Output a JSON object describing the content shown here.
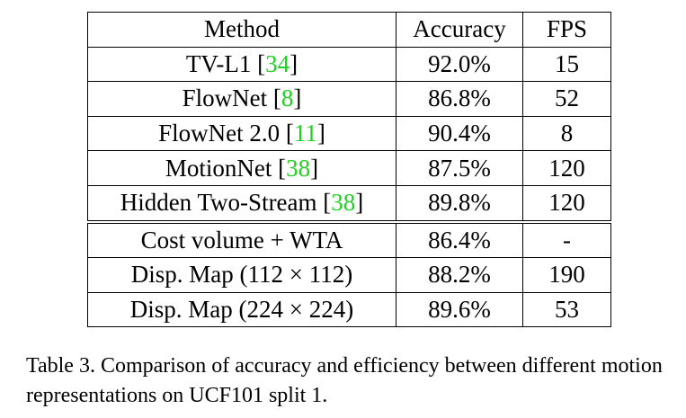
{
  "table": {
    "headers": [
      "Method",
      "Accuracy",
      "FPS"
    ],
    "group1": [
      {
        "method": "TV-L1",
        "cite": "34",
        "accuracy": "92.0%",
        "fps": "15"
      },
      {
        "method": "FlowNet",
        "cite": "8",
        "accuracy": "86.8%",
        "fps": "52"
      },
      {
        "method": "FlowNet 2.0",
        "cite": "11",
        "accuracy": "90.4%",
        "fps": "8"
      },
      {
        "method": "MotionNet",
        "cite": "38",
        "accuracy": "87.5%",
        "fps": "120"
      },
      {
        "method": "Hidden Two-Stream",
        "cite": "38",
        "accuracy": "89.8%",
        "fps": "120"
      }
    ],
    "group2": [
      {
        "method": "Cost volume + WTA",
        "accuracy": "86.4%",
        "fps": "-"
      },
      {
        "method": "Disp. Map (112 × 112)",
        "accuracy": "88.2%",
        "fps": "190"
      },
      {
        "method": "Disp. Map (224 × 224)",
        "accuracy": "89.6%",
        "fps": "53"
      }
    ],
    "citation_color": "#1fd11f"
  },
  "caption": {
    "text": "Table 3. Comparison of accuracy and efficiency between different motion representations on UCF101 split 1."
  }
}
